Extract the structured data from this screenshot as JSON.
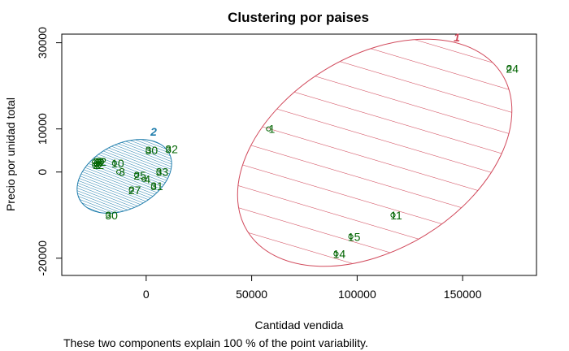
{
  "chart_data": {
    "type": "scatter",
    "title": "Clustering por paises",
    "xlabel": "Cantidad vendida",
    "ylabel": "Precio por unidad total",
    "note": "These two components explain 100 % of the point variability.",
    "xlim": [
      -40000,
      185000
    ],
    "ylim": [
      -24000,
      32000
    ],
    "x_ticks": [
      0,
      50000,
      100000,
      150000
    ],
    "y_ticks": [
      -20000,
      10000,
      30000
    ],
    "y_ticks_unlabeled": [
      0
    ],
    "colors": {
      "cluster1": "#d1495b",
      "cluster2": "#1f7dac",
      "points": "#006400"
    },
    "clusters": [
      {
        "label": "1",
        "color": "#d1495b",
        "fill": "hatched"
      },
      {
        "label": "2",
        "color": "#1f7dac",
        "fill": "dense hatched"
      }
    ],
    "points": [
      {
        "label": "1",
        "x": 58000,
        "y": 10000,
        "cluster": 1
      },
      {
        "label": "24",
        "x": 172000,
        "y": 24000,
        "cluster": 1
      },
      {
        "label": "11",
        "x": 117000,
        "y": -10000,
        "cluster": 1
      },
      {
        "label": "15",
        "x": 97000,
        "y": -15000,
        "cluster": 1
      },
      {
        "label": "14",
        "x": 90000,
        "y": -19000,
        "cluster": 1
      },
      {
        "label": "30",
        "x": 1000,
        "y": 5000,
        "cluster": 2
      },
      {
        "label": "32",
        "x": 10500,
        "y": 5300,
        "cluster": 2
      },
      {
        "label": "10",
        "x": -15000,
        "y": 2000,
        "cluster": 2
      },
      {
        "label": "3",
        "x": -13000,
        "y": 0,
        "cluster": 2
      },
      {
        "label": "33",
        "x": 6000,
        "y": 0,
        "cluster": 2
      },
      {
        "label": "25",
        "x": -4500,
        "y": -800,
        "cluster": 2
      },
      {
        "label": "4",
        "x": -1000,
        "y": -1700,
        "cluster": 2
      },
      {
        "label": "31",
        "x": 3500,
        "y": -3300,
        "cluster": 2
      },
      {
        "label": "27",
        "x": -7000,
        "y": -4200,
        "cluster": 2
      },
      {
        "label": "30",
        "x": -18000,
        "y": -10000,
        "cluster": 2
      }
    ],
    "dense_group_x": -23000,
    "dense_group_y": 1800
  }
}
